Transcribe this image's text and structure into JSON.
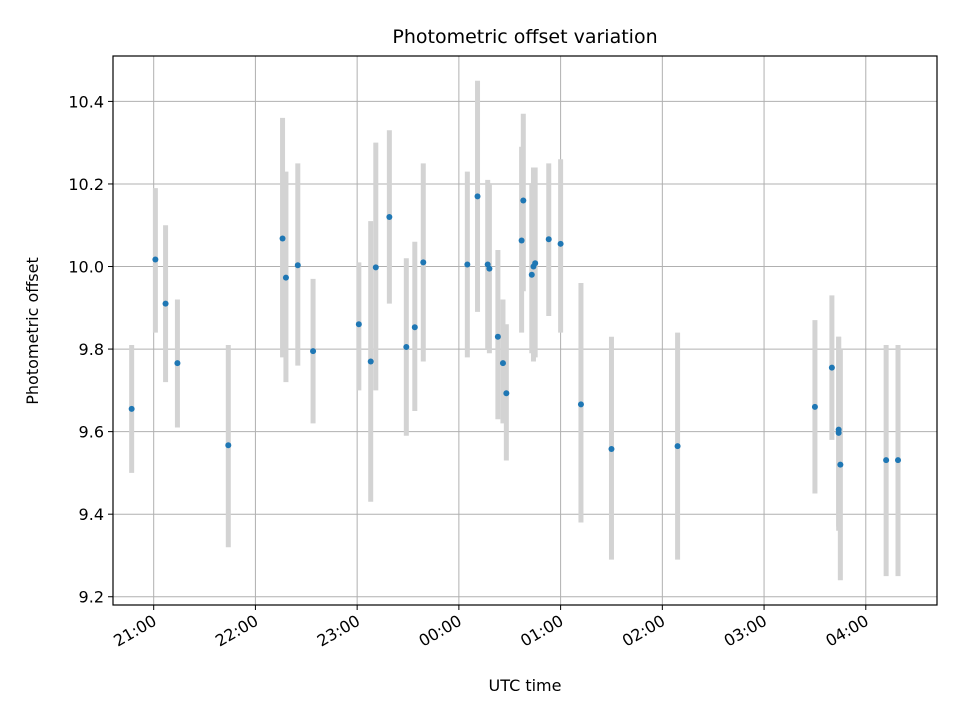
{
  "chart_data": {
    "type": "scatter",
    "title": "Photometric offset variation",
    "xlabel": "UTC time",
    "ylabel": "Photometric offset",
    "x_axis": {
      "kind": "time",
      "lim": [
        "20:36",
        "04:42"
      ],
      "ticks": [
        "21:00",
        "22:00",
        "23:00",
        "00:00",
        "01:00",
        "02:00",
        "03:00",
        "04:00"
      ]
    },
    "y_axis": {
      "lim": [
        9.18,
        10.51
      ],
      "ticks": [
        "9.2",
        "9.4",
        "9.6",
        "9.8",
        "10.0",
        "10.2",
        "10.4"
      ]
    },
    "grid": true,
    "colors": {
      "point": "#1f77b4",
      "errorbar": "#d3d3d3",
      "grid": "#b0b0b0"
    },
    "points": [
      {
        "x": "20:47",
        "y": 9.655,
        "ylow": 9.5,
        "yhigh": 9.81
      },
      {
        "x": "21:01",
        "y": 10.017,
        "ylow": 9.84,
        "yhigh": 10.19
      },
      {
        "x": "21:07",
        "y": 9.91,
        "ylow": 9.72,
        "yhigh": 10.1
      },
      {
        "x": "21:14",
        "y": 9.766,
        "ylow": 9.61,
        "yhigh": 9.92
      },
      {
        "x": "21:44",
        "y": 9.567,
        "ylow": 9.32,
        "yhigh": 9.81
      },
      {
        "x": "22:16",
        "y": 10.068,
        "ylow": 9.78,
        "yhigh": 10.36
      },
      {
        "x": "22:18",
        "y": 9.973,
        "ylow": 9.72,
        "yhigh": 10.23
      },
      {
        "x": "22:25",
        "y": 10.003,
        "ylow": 9.76,
        "yhigh": 10.25
      },
      {
        "x": "22:34",
        "y": 9.795,
        "ylow": 9.62,
        "yhigh": 9.97
      },
      {
        "x": "23:01",
        "y": 9.86,
        "ylow": 9.7,
        "yhigh": 10.01
      },
      {
        "x": "23:08",
        "y": 9.77,
        "ylow": 9.43,
        "yhigh": 10.11
      },
      {
        "x": "23:11",
        "y": 9.998,
        "ylow": 9.7,
        "yhigh": 10.3
      },
      {
        "x": "23:19",
        "y": 10.12,
        "ylow": 9.91,
        "yhigh": 10.33
      },
      {
        "x": "23:29",
        "y": 9.805,
        "ylow": 9.59,
        "yhigh": 10.02
      },
      {
        "x": "23:34",
        "y": 9.853,
        "ylow": 9.65,
        "yhigh": 10.06
      },
      {
        "x": "23:39",
        "y": 10.01,
        "ylow": 9.77,
        "yhigh": 10.25
      },
      {
        "x": "00:05",
        "y": 10.005,
        "ylow": 9.78,
        "yhigh": 10.23
      },
      {
        "x": "00:11",
        "y": 10.17,
        "ylow": 9.89,
        "yhigh": 10.45
      },
      {
        "x": "00:17",
        "y": 10.005,
        "ylow": 9.8,
        "yhigh": 10.21
      },
      {
        "x": "00:18",
        "y": 9.995,
        "ylow": 9.79,
        "yhigh": 10.2
      },
      {
        "x": "00:23",
        "y": 9.83,
        "ylow": 9.63,
        "yhigh": 10.04
      },
      {
        "x": "00:26",
        "y": 9.766,
        "ylow": 9.62,
        "yhigh": 9.92
      },
      {
        "x": "00:28",
        "y": 9.693,
        "ylow": 9.53,
        "yhigh": 9.86
      },
      {
        "x": "00:37",
        "y": 10.063,
        "ylow": 9.84,
        "yhigh": 10.29
      },
      {
        "x": "00:38",
        "y": 10.16,
        "ylow": 9.94,
        "yhigh": 10.37
      },
      {
        "x": "00:43",
        "y": 9.98,
        "ylow": 9.79,
        "yhigh": 10.2
      },
      {
        "x": "00:44",
        "y": 10.0,
        "ylow": 9.77,
        "yhigh": 10.24
      },
      {
        "x": "00:45",
        "y": 10.008,
        "ylow": 9.78,
        "yhigh": 10.24
      },
      {
        "x": "00:53",
        "y": 10.066,
        "ylow": 9.88,
        "yhigh": 10.25
      },
      {
        "x": "01:00",
        "y": 10.055,
        "ylow": 9.84,
        "yhigh": 10.26
      },
      {
        "x": "01:12",
        "y": 9.666,
        "ylow": 9.38,
        "yhigh": 9.96
      },
      {
        "x": "01:30",
        "y": 9.558,
        "ylow": 9.29,
        "yhigh": 9.83
      },
      {
        "x": "02:09",
        "y": 9.565,
        "ylow": 9.29,
        "yhigh": 9.84
      },
      {
        "x": "03:30",
        "y": 9.66,
        "ylow": 9.45,
        "yhigh": 9.87
      },
      {
        "x": "03:40",
        "y": 9.755,
        "ylow": 9.58,
        "yhigh": 9.93
      },
      {
        "x": "03:44",
        "y": 9.605,
        "ylow": 9.37,
        "yhigh": 9.83
      },
      {
        "x": "03:44",
        "y": 9.597,
        "ylow": 9.36,
        "yhigh": 9.83
      },
      {
        "x": "03:45",
        "y": 9.52,
        "ylow": 9.24,
        "yhigh": 9.8
      },
      {
        "x": "04:12",
        "y": 9.531,
        "ylow": 9.25,
        "yhigh": 9.81
      },
      {
        "x": "04:19",
        "y": 9.531,
        "ylow": 9.25,
        "yhigh": 9.81
      }
    ]
  }
}
